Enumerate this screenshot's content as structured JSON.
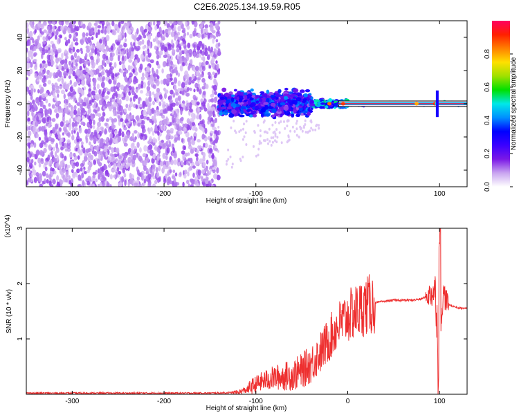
{
  "title": "C2E6.2025.134.19.59.R05",
  "chart_data": [
    {
      "type": "heatmap",
      "xlabel": "Height of straight line (km)",
      "ylabel": "Frequency (Hz)",
      "xlim": [
        -350,
        130
      ],
      "ylim": [
        -50,
        50
      ],
      "xticks": [
        "-300",
        "-200",
        "-100",
        "0",
        "100"
      ],
      "yticks": [
        "-40",
        "-20",
        "0",
        "20",
        "40"
      ],
      "colorbar": {
        "label": "Normalized spectral amplitude",
        "range": [
          0,
          1
        ],
        "ticks": [
          "0.0",
          "0.2",
          "0.4",
          "0.6",
          "0.8"
        ],
        "colors": [
          "#ffffff",
          "#c9a4f0",
          "#7a18e6",
          "#3a00ff",
          "#0000ff",
          "#0090ff",
          "#00e8e8",
          "#00e000",
          "#a0e000",
          "#ffe000",
          "#ff8000",
          "#ff2000",
          "#ff0060"
        ]
      },
      "regions": [
        {
          "x": [
            -350,
            -140
          ],
          "freq_spread": 50,
          "amplitude": 0.1
        },
        {
          "x": [
            -140,
            -40
          ],
          "freq_spread": 10,
          "amplitude": 0.3
        },
        {
          "x": [
            -40,
            0
          ],
          "freq_spread": 3,
          "amplitude": 0.5
        },
        {
          "x": [
            0,
            130
          ],
          "freq_spread": 1,
          "amplitude": 0.9
        }
      ],
      "line_frequency": 0
    },
    {
      "type": "line",
      "xlabel": "Height of straight line (km)",
      "ylabel": "SNR (10 * v/v)",
      "yscale_label": "(x10^4)",
      "xlim": [
        -350,
        130
      ],
      "ylim": [
        0,
        3
      ],
      "xticks": [
        "-300",
        "-200",
        "-100",
        "0",
        "100"
      ],
      "yticks": [
        "1",
        "2",
        "3"
      ],
      "color": "#ee3030",
      "x": [
        -350,
        -200,
        -150,
        -120,
        -110,
        -100,
        -90,
        -80,
        -70,
        -60,
        -50,
        -40,
        -30,
        -20,
        -10,
        0,
        10,
        20,
        30,
        40,
        50,
        60,
        70,
        80,
        90,
        95,
        98,
        100,
        102,
        105,
        110,
        120,
        130
      ],
      "y": [
        0.02,
        0.02,
        0.02,
        0.03,
        0.08,
        0.18,
        0.25,
        0.3,
        0.32,
        0.35,
        0.42,
        0.55,
        0.75,
        1.0,
        1.25,
        1.4,
        1.5,
        1.6,
        1.65,
        1.68,
        1.7,
        1.7,
        1.7,
        1.72,
        1.8,
        1.9,
        1.2,
        0.2,
        1.6,
        1.8,
        1.62,
        1.56,
        1.55
      ]
    }
  ]
}
